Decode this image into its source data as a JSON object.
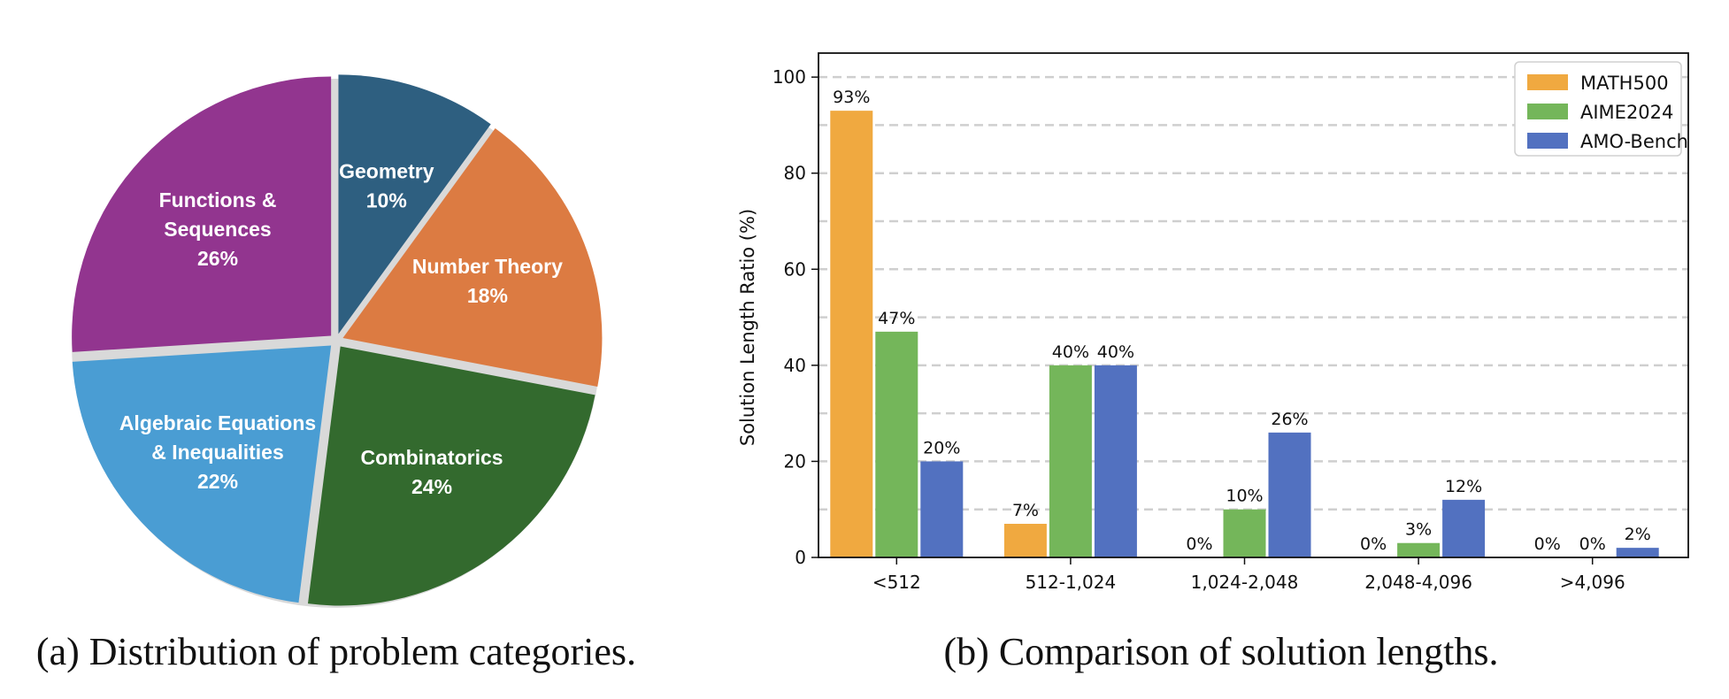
{
  "captions": {
    "a": "(a) Distribution of problem categories.",
    "b": "(b) Comparison of solution lengths."
  },
  "chart_data": [
    {
      "type": "pie",
      "title": "Distribution of problem categories",
      "slices": [
        {
          "label_lines": [
            "Geometry"
          ],
          "percent_label": "10%",
          "value": 10,
          "color": "#2e5f80"
        },
        {
          "label_lines": [
            "Number Theory"
          ],
          "percent_label": "18%",
          "value": 18,
          "color": "#dc7b42"
        },
        {
          "label_lines": [
            "Combinatorics"
          ],
          "percent_label": "24%",
          "value": 24,
          "color": "#336a2e"
        },
        {
          "label_lines": [
            "Algebraic Equations",
            "& Inequalities"
          ],
          "percent_label": "22%",
          "value": 22,
          "color": "#4a9dd3"
        },
        {
          "label_lines": [
            "Functions &",
            "Sequences"
          ],
          "percent_label": "26%",
          "value": 26,
          "color": "#92358f"
        }
      ]
    },
    {
      "type": "bar",
      "title": "Comparison of solution lengths",
      "xlabel": "",
      "ylabel": "Solution Length Ratio (%)",
      "ylim": [
        0,
        105
      ],
      "yticks": [
        0,
        20,
        40,
        60,
        80,
        100
      ],
      "grid": "y-dashed",
      "legend_position": "top-right",
      "categories": [
        "<512",
        "512-1,024",
        "1,024-2,048",
        "2,048-4,096",
        ">4,096"
      ],
      "series": [
        {
          "name": "MATH500",
          "color": "#f0a940",
          "values": [
            93,
            7,
            0,
            0,
            0
          ],
          "labels": [
            "93%",
            "7%",
            "0%",
            "0%",
            "0%"
          ]
        },
        {
          "name": "AIME2024",
          "color": "#74b65a",
          "values": [
            47,
            40,
            10,
            3,
            0
          ],
          "labels": [
            "47%",
            "40%",
            "10%",
            "3%",
            "0%"
          ]
        },
        {
          "name": "AMO-Bench",
          "color": "#5271c0",
          "values": [
            20,
            40,
            26,
            12,
            2
          ],
          "labels": [
            "20%",
            "40%",
            "26%",
            "12%",
            "2%"
          ]
        }
      ]
    }
  ]
}
